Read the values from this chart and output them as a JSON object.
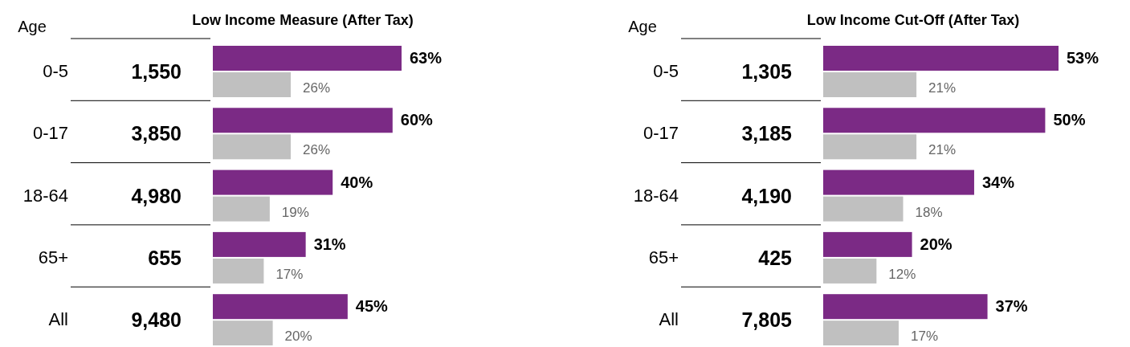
{
  "chart_data": [
    {
      "type": "bar",
      "orientation": "horizontal",
      "title": "Low Income Measure (After Tax)",
      "ylabel": "Age",
      "categories": [
        "0-5",
        "0-17",
        "18-64",
        "65+",
        "All"
      ],
      "series": [
        {
          "color": "#7b2a85",
          "values": [
            63,
            60,
            40,
            31,
            45
          ],
          "value_labels": [
            "63%",
            "60%",
            "40%",
            "31%",
            "45%"
          ]
        },
        {
          "color": "#c0c0c0",
          "values": [
            26,
            26,
            19,
            17,
            20
          ],
          "value_labels": [
            "26%",
            "26%",
            "19%",
            "17%",
            "20%"
          ]
        }
      ],
      "annotations": [
        "1,550",
        "3,850",
        "4,980",
        "655",
        "9,480"
      ]
    },
    {
      "type": "bar",
      "orientation": "horizontal",
      "title": "Low Income Cut-Off (After Tax)",
      "ylabel": "Age",
      "categories": [
        "0-5",
        "0-17",
        "18-64",
        "65+",
        "All"
      ],
      "series": [
        {
          "color": "#7b2a85",
          "values": [
            53,
            50,
            34,
            20,
            37
          ],
          "value_labels": [
            "53%",
            "50%",
            "34%",
            "20%",
            "37%"
          ]
        },
        {
          "color": "#c0c0c0",
          "values": [
            21,
            21,
            18,
            12,
            17
          ],
          "value_labels": [
            "21%",
            "21%",
            "18%",
            "12%",
            "17%"
          ]
        }
      ],
      "annotations": [
        "1,305",
        "3,185",
        "4,190",
        "425",
        "7,805"
      ]
    }
  ]
}
